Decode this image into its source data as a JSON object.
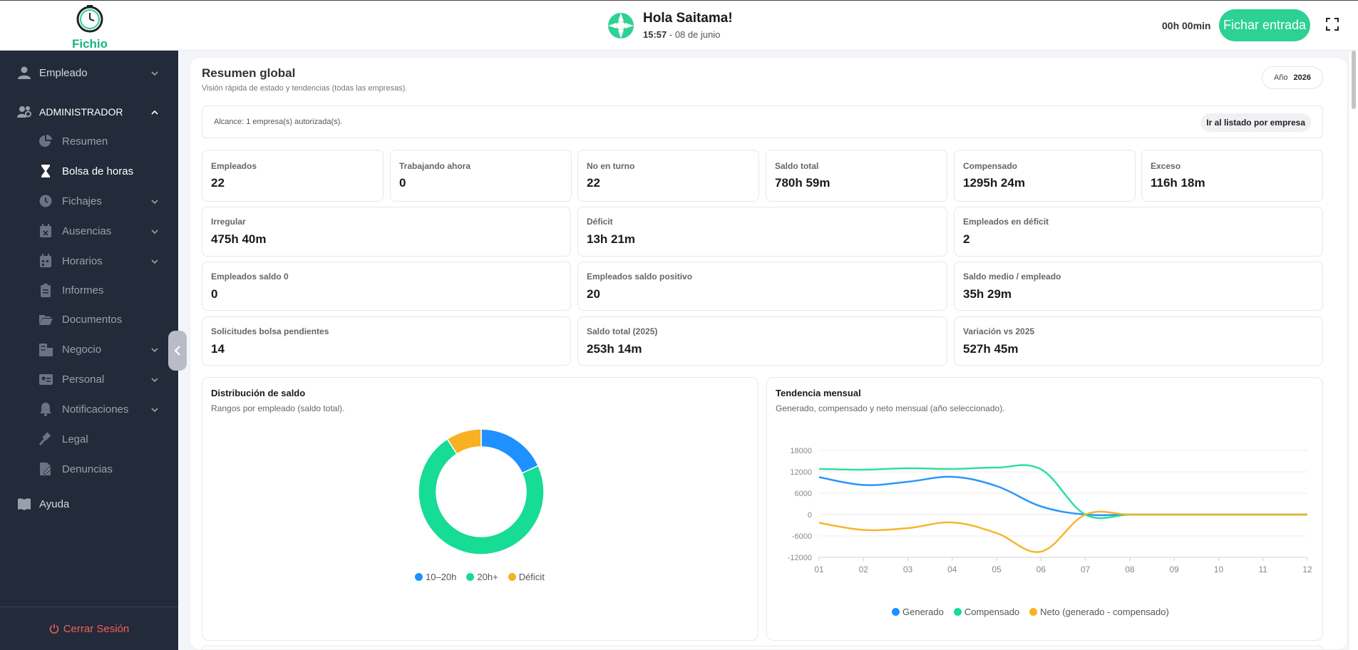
{
  "app": {
    "logo_text": "Fichio"
  },
  "header": {
    "greeting": "Hola Saitama!",
    "time": "15:57",
    "date_sep": " - ",
    "date": "08 de junio",
    "timer": "00h 00min",
    "clock_in_label": "Fichar entrada"
  },
  "sidebar": {
    "items": [
      {
        "label": "Empleado",
        "icon": "user-icon",
        "level": 0,
        "chevron": "down"
      },
      {
        "label": "ADMINISTRADOR",
        "icon": "users-gear-icon",
        "level": 0,
        "chevron": "up"
      },
      {
        "label": "Resumen",
        "icon": "pie-chart-icon",
        "level": 1
      },
      {
        "label": "Bolsa de horas",
        "icon": "hourglass-icon",
        "level": 1,
        "active": true
      },
      {
        "label": "Fichajes",
        "icon": "clock-icon",
        "level": 1,
        "chevron": "down"
      },
      {
        "label": "Ausencias",
        "icon": "calendar-x-icon",
        "level": 1,
        "chevron": "down"
      },
      {
        "label": "Horarios",
        "icon": "calendar-icon",
        "level": 1,
        "chevron": "down"
      },
      {
        "label": "Informes",
        "icon": "clipboard-icon",
        "level": 1
      },
      {
        "label": "Documentos",
        "icon": "folder-open-icon",
        "level": 1
      },
      {
        "label": "Negocio",
        "icon": "building-icon",
        "level": 1,
        "chevron": "down"
      },
      {
        "label": "Personal",
        "icon": "id-card-icon",
        "level": 1,
        "chevron": "down"
      },
      {
        "label": "Notificaciones",
        "icon": "bell-icon",
        "level": 1,
        "chevron": "down"
      },
      {
        "label": "Legal",
        "icon": "gavel-icon",
        "level": 1
      },
      {
        "label": "Denuncias",
        "icon": "file-edit-icon",
        "level": 1
      },
      {
        "label": "Ayuda",
        "icon": "book-icon",
        "level": 0
      }
    ],
    "logout_label": "Cerrar Sesión"
  },
  "summary": {
    "title": "Resumen global",
    "subtitle": "Visión rápida de estado y tendencias (todas las empresas).",
    "year_label": "Año",
    "year_value": "2026",
    "scope_text": "Alcance: 1 empresa(s) autorizada(s).",
    "scope_button": "Ir al listado por empresa"
  },
  "stats": [
    {
      "label": "Empleados",
      "value": "22"
    },
    {
      "label": "Trabajando ahora",
      "value": "0"
    },
    {
      "label": "No en turno",
      "value": "22"
    },
    {
      "label": "Saldo total",
      "value": "780h 59m"
    },
    {
      "label": "Compensado",
      "value": "1295h 24m"
    },
    {
      "label": "Exceso",
      "value": "116h 18m"
    },
    {
      "label": "Irregular",
      "value": "475h 40m"
    },
    {
      "label": "Déficit",
      "value": "13h 21m"
    },
    {
      "label": "Empleados en déficit",
      "value": "2"
    },
    {
      "label": "Empleados saldo 0",
      "value": "0"
    },
    {
      "label": "Empleados saldo positivo",
      "value": "20"
    },
    {
      "label": "Saldo medio / empleado",
      "value": "35h 29m"
    },
    {
      "label": "Solicitudes bolsa pendientes",
      "value": "14"
    },
    {
      "label": "Saldo total (2025)",
      "value": "253h 14m"
    },
    {
      "label": "Variación vs 2025",
      "value": "527h 45m"
    }
  ],
  "colors": {
    "accent": "#2dd193",
    "blue": "#1e90ff",
    "green": "#16dc96",
    "amber": "#f7b122",
    "sidebar": "#232a39",
    "logout": "#f0605c"
  },
  "chart_data": [
    {
      "type": "pie",
      "title": "Distribución de saldo",
      "subtitle": "Rangos por empleado (saldo total).",
      "labels": [
        "10–20h",
        "20h+",
        "Déficit"
      ],
      "values": [
        4,
        16,
        2
      ],
      "colors": [
        "#1e90ff",
        "#16dc96",
        "#f7b122"
      ],
      "legend": "bottom"
    },
    {
      "type": "line",
      "title": "Tendencia mensual",
      "subtitle": "Generado, compensado y neto mensual (año seleccionado).",
      "x": [
        "01",
        "02",
        "03",
        "04",
        "05",
        "06",
        "07",
        "08",
        "09",
        "10",
        "11",
        "12"
      ],
      "yticks": [
        "18000",
        "12000",
        "6000",
        "0",
        "-6000",
        "-12000"
      ],
      "ylim": [
        -12000,
        18000
      ],
      "series": [
        {
          "name": "Generado",
          "color": "#1e90ff",
          "values": [
            10500,
            8300,
            9200,
            10600,
            8000,
            2300,
            0,
            0,
            0,
            0,
            0,
            0
          ]
        },
        {
          "name": "Compensado",
          "color": "#16dc96",
          "values": [
            12800,
            12600,
            13000,
            12800,
            13200,
            12700,
            0,
            0,
            0,
            0,
            0,
            0
          ]
        },
        {
          "name": "Neto (generado - compensado)",
          "color": "#f7b122",
          "values": [
            -2300,
            -4300,
            -3800,
            -2200,
            -5200,
            -10400,
            0,
            0,
            0,
            0,
            0,
            0
          ]
        }
      ],
      "legend": "bottom",
      "grid": "horizontal"
    }
  ]
}
